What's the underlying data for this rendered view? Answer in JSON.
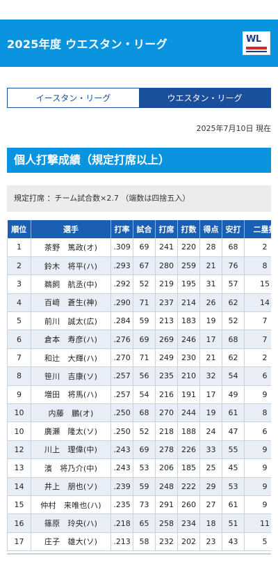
{
  "header": {
    "title": "2025年度 ウエスタン・リーグ",
    "logo_text": "WL"
  },
  "tabs": [
    {
      "label": "イースタン・リーグ",
      "active": false
    },
    {
      "label": "ウエスタン・リーグ",
      "active": true
    }
  ],
  "date_text": "2025年7月10日 現在",
  "section_title": "個人打撃成績（規定打席以上）",
  "note": "規定打席 ：チーム試合数×2.7 （端数は四捨五入）",
  "table": {
    "headers": [
      "順位",
      "選手",
      "打率",
      "試合",
      "打席",
      "打数",
      "得点",
      "安打",
      "二塁打"
    ],
    "rows": [
      [
        "1",
        "茶野　篤政(オ)",
        ".309",
        "69",
        "241",
        "220",
        "28",
        "68",
        "2"
      ],
      [
        "2",
        "鈴木　将平(ハ)",
        ".293",
        "67",
        "280",
        "259",
        "21",
        "76",
        "8"
      ],
      [
        "3",
        "鵜飼　航丞(中)",
        ".292",
        "52",
        "219",
        "195",
        "31",
        "57",
        "15"
      ],
      [
        "4",
        "百﨑　蒼生(神)",
        ".290",
        "71",
        "237",
        "214",
        "26",
        "62",
        "14"
      ],
      [
        "5",
        "前川　誠太(広)",
        ".284",
        "59",
        "213",
        "183",
        "19",
        "52",
        "7"
      ],
      [
        "6",
        "倉本　寿彦(ハ)",
        ".276",
        "69",
        "269",
        "246",
        "17",
        "68",
        "7"
      ],
      [
        "7",
        "和辻　大輝(ハ)",
        ".270",
        "71",
        "249",
        "230",
        "21",
        "62",
        "2"
      ],
      [
        "8",
        "笹川　吉康(ソ)",
        ".257",
        "56",
        "235",
        "210",
        "32",
        "54",
        "6"
      ],
      [
        "9",
        "増田　将馬(ハ)",
        ".257",
        "54",
        "216",
        "191",
        "17",
        "49",
        "9"
      ],
      [
        "10",
        "内藤　鵬(オ)",
        ".250",
        "68",
        "270",
        "244",
        "19",
        "61",
        "8"
      ],
      [
        "10",
        "廣瀬　隆太(ソ)",
        ".250",
        "52",
        "218",
        "188",
        "24",
        "47",
        "6"
      ],
      [
        "12",
        "川上　理偉(中)",
        ".243",
        "69",
        "278",
        "226",
        "33",
        "55",
        "9"
      ],
      [
        "13",
        "濱　将乃介(中)",
        ".243",
        "53",
        "206",
        "185",
        "25",
        "45",
        "9"
      ],
      [
        "14",
        "井上　朋也(ソ)",
        ".239",
        "59",
        "248",
        "222",
        "29",
        "53",
        "9"
      ],
      [
        "15",
        "仲村　来唯也(ハ)",
        ".235",
        "73",
        "291",
        "260",
        "27",
        "61",
        "9"
      ],
      [
        "16",
        "篠原　玲央(ハ)",
        ".218",
        "65",
        "258",
        "234",
        "18",
        "51",
        "11"
      ],
      [
        "17",
        "庄子　雄大(ソ)",
        ".213",
        "58",
        "232",
        "202",
        "23",
        "43",
        "5"
      ]
    ]
  },
  "colors": {
    "header_bg": "#0a93de",
    "table_header_bg": "#1a5fb4",
    "active_tab_bg": "#1a4f9c",
    "row_alt_bg": "#e9eef6"
  }
}
